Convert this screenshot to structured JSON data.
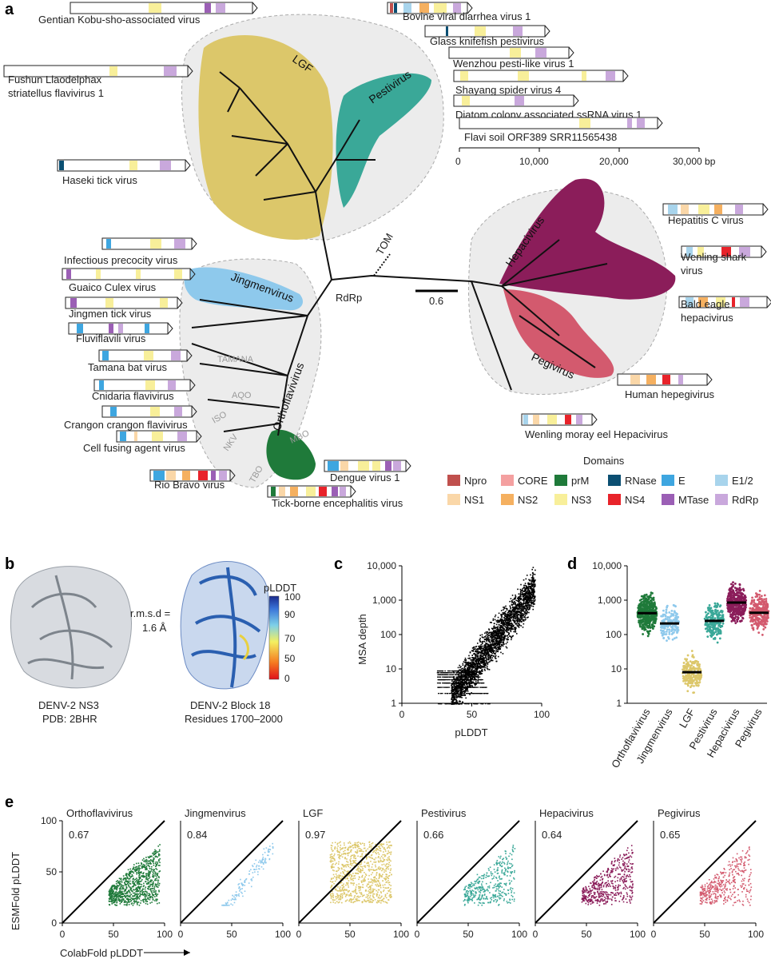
{
  "panels": {
    "a": "a",
    "b": "b",
    "c": "c",
    "d": "d",
    "e": "e"
  },
  "tree": {
    "clades": [
      "LGF",
      "Pestivirus",
      "Jingmenvirus",
      "Orthoflavivirus",
      "Hepacivirus",
      "Pegivirus"
    ],
    "subclades": [
      "TAMANA",
      "AQO",
      "ISO",
      "NKV",
      "MBO",
      "TBO"
    ],
    "labels": {
      "tom": "TOM",
      "rdrp": "RdRp",
      "scale": "0.6"
    },
    "colors": {
      "LGF": "#dcc76a",
      "Pestivirus": "#3aa898",
      "Jingmenvirus": "#8ec9ec",
      "Orthoflavivirus": "#1f7a3a",
      "Hepacivirus": "#8b1d5a",
      "Pegivirus": "#d35a6e"
    }
  },
  "genomes": [
    {
      "name": "Gentian Kobu-sho-associated virus"
    },
    {
      "name": "Fushun Llaodelphax striatellus flavivirus 1",
      "line1": "Fushun Llaodelphax",
      "line2": "striatellus flavivirus 1"
    },
    {
      "name": "Haseki tick virus"
    },
    {
      "name": "Bovine viral diarrhea virus 1"
    },
    {
      "name": "Glass knifefish pestivirus"
    },
    {
      "name": "Wenzhou pesti-like virus 1"
    },
    {
      "name": "Shayang spider virus 4"
    },
    {
      "name": "Diatom colony associated ssRNA virus 1"
    },
    {
      "name": "Flavi soil ORF389 SRR11565438"
    },
    {
      "name": "Infectious precocity virus"
    },
    {
      "name": "Guaico Culex virus"
    },
    {
      "name": "Jingmen tick virus"
    },
    {
      "name": "Fluviflavili virus"
    },
    {
      "name": "Tamana bat virus"
    },
    {
      "name": "Cnidaria flavivirus"
    },
    {
      "name": "Crangon crangon flavivirus"
    },
    {
      "name": "Cell fusing agent virus"
    },
    {
      "name": "Rio Bravo virus"
    },
    {
      "name": "Dengue virus 1"
    },
    {
      "name": "Tick-borne encephalitis virus"
    },
    {
      "name": "Hepatitis C virus"
    },
    {
      "name": "Wenling shark virus",
      "line1": "Wenling shark",
      "line2": "virus"
    },
    {
      "name": "Bald eagle hepacivirus",
      "line1": "Bald eagle",
      "line2": "hepacivirus"
    },
    {
      "name": "Human hepegivirus"
    },
    {
      "name": "Wenling moray eel Hepacivirus"
    }
  ],
  "genome_axis": {
    "ticks": [
      "0",
      "10,000",
      "20,000",
      "30,000 bp"
    ]
  },
  "legend": {
    "title": "Domains",
    "items": [
      {
        "name": "Npro",
        "color": "#c0504d"
      },
      {
        "name": "CORE",
        "color": "#f4a0a0"
      },
      {
        "name": "prM",
        "color": "#1f7a3a"
      },
      {
        "name": "RNase",
        "color": "#0b4f72"
      },
      {
        "name": "E",
        "color": "#3ea6e0"
      },
      {
        "name": "E1/2",
        "color": "#a8d4ec"
      },
      {
        "name": "NS1",
        "color": "#fad7a8"
      },
      {
        "name": "NS2",
        "color": "#f5b060"
      },
      {
        "name": "NS3",
        "color": "#f8ef9a"
      },
      {
        "name": "NS4",
        "color": "#e8232a"
      },
      {
        "name": "MTase",
        "color": "#9b5fb5"
      },
      {
        "name": "RdRp",
        "color": "#c9a8dc"
      }
    ]
  },
  "structure": {
    "left_caption1": "DENV-2 NS3",
    "left_caption2": "PDB: 2BHR",
    "right_caption1": "DENV-2 Block 18",
    "right_caption2": "Residues 1700–2000",
    "rmsd1": "r.m.s.d =",
    "rmsd2": "1.6 Å",
    "colorbar_title": "pLDDT",
    "colorbar_ticks": [
      "100",
      "90",
      "70",
      "50",
      "0"
    ]
  },
  "chart_data": [
    {
      "type": "scatter",
      "title": "",
      "xlabel": "pLDDT",
      "ylabel": "MSA depth",
      "xlim": [
        0,
        100
      ],
      "ylim": [
        1,
        10000
      ],
      "yscale": "log",
      "xticks": [
        "0",
        "50",
        "100"
      ],
      "yticks": [
        "1",
        "10",
        "100",
        "1,000",
        "10,000"
      ],
      "description_points": "dense cloud rising from ~(30,1) to ~(95,10000); horizontal bands at depths 1–10 for pLDDT 25–60"
    },
    {
      "type": "strip",
      "xlabel": "",
      "ylabel": "",
      "ylim": [
        1,
        10000
      ],
      "yscale": "log",
      "yticks": [
        "1",
        "10",
        "100",
        "1,000",
        "10,000"
      ],
      "categories": [
        "Orthoflavivirus",
        "Jingmenvirus",
        "LGF",
        "Pestivirus",
        "Hepacivirus",
        "Pegivirus"
      ],
      "medians": [
        420,
        210,
        8,
        250,
        850,
        430
      ]
    },
    {
      "type": "scatter",
      "xlabel": "ColabFold pLDDT",
      "ylabel": "ESMFold pLDDT",
      "xlim": [
        0,
        100
      ],
      "ylim": [
        0,
        100
      ],
      "xticks": [
        "0",
        "50",
        "100"
      ],
      "yticks": [
        "0",
        "50",
        "100"
      ],
      "series": [
        {
          "name": "Orthoflavivirus",
          "r": "0.67"
        },
        {
          "name": "Jingmenvirus",
          "r": "0.84"
        },
        {
          "name": "LGF",
          "r": "0.97"
        },
        {
          "name": "Pestivirus",
          "r": "0.66"
        },
        {
          "name": "Hepacivirus",
          "r": "0.64"
        },
        {
          "name": "Pegivirus",
          "r": "0.65"
        }
      ]
    }
  ]
}
